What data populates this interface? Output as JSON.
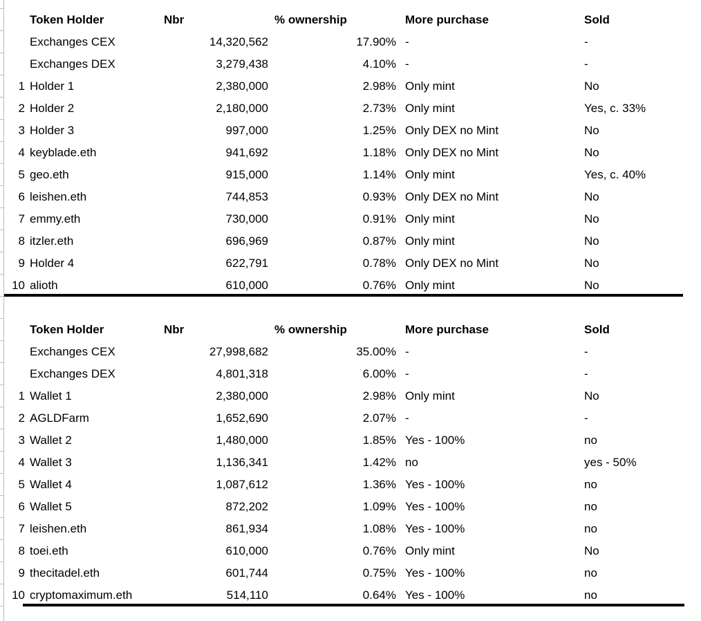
{
  "colors": {
    "background": "#ffffff",
    "text": "#000000",
    "gridline": "#bbbbbb",
    "divider": "#000000"
  },
  "tables": [
    {
      "headers": {
        "rank": "",
        "holder": "Token Holder",
        "nbr": "Nbr",
        "pct": "% ownership",
        "more": "More purchase",
        "sold": "Sold"
      },
      "rows": [
        {
          "rank": "",
          "holder": "Exchanges CEX",
          "nbr": "14,320,562",
          "pct": "17.90%",
          "more": "-",
          "sold": "-"
        },
        {
          "rank": "",
          "holder": "Exchanges DEX",
          "nbr": "3,279,438",
          "pct": "4.10%",
          "more": "-",
          "sold": "-"
        },
        {
          "rank": "1",
          "holder": "Holder 1",
          "nbr": "2,380,000",
          "pct": "2.98%",
          "more": "Only mint",
          "sold": "No"
        },
        {
          "rank": "2",
          "holder": "Holder 2",
          "nbr": "2,180,000",
          "pct": "2.73%",
          "more": "Only mint",
          "sold": "Yes, c. 33%"
        },
        {
          "rank": "3",
          "holder": "Holder 3",
          "nbr": "997,000",
          "pct": "1.25%",
          "more": "Only DEX no Mint",
          "sold": "No"
        },
        {
          "rank": "4",
          "holder": "keyblade.eth",
          "nbr": "941,692",
          "pct": "1.18%",
          "more": "Only DEX no Mint",
          "sold": "No"
        },
        {
          "rank": "5",
          "holder": "geo.eth",
          "nbr": "915,000",
          "pct": "1.14%",
          "more": "Only mint",
          "sold": "Yes, c. 40%"
        },
        {
          "rank": "6",
          "holder": "leishen.eth",
          "nbr": "744,853",
          "pct": "0.93%",
          "more": "Only DEX no Mint",
          "sold": "No"
        },
        {
          "rank": "7",
          "holder": "emmy.eth",
          "nbr": "730,000",
          "pct": "0.91%",
          "more": "Only mint",
          "sold": "No"
        },
        {
          "rank": "8",
          "holder": "itzler.eth",
          "nbr": "696,969",
          "pct": "0.87%",
          "more": "Only mint",
          "sold": "No"
        },
        {
          "rank": "9",
          "holder": "Holder 4",
          "nbr": "622,791",
          "pct": "0.78%",
          "more": "Only DEX no Mint",
          "sold": "No"
        },
        {
          "rank": "10",
          "holder": "alioth",
          "nbr": "610,000",
          "pct": "0.76%",
          "more": "Only mint",
          "sold": "No"
        }
      ]
    },
    {
      "headers": {
        "rank": "",
        "holder": "Token Holder",
        "nbr": "Nbr",
        "pct": "% ownership",
        "more": "More purchase",
        "sold": "Sold"
      },
      "rows": [
        {
          "rank": "",
          "holder": "Exchanges CEX",
          "nbr": "27,998,682",
          "pct": "35.00%",
          "more": "-",
          "sold": "-"
        },
        {
          "rank": "",
          "holder": "Exchanges DEX",
          "nbr": "4,801,318",
          "pct": "6.00%",
          "more": "-",
          "sold": "-"
        },
        {
          "rank": "1",
          "holder": "Wallet 1",
          "nbr": "2,380,000",
          "pct": "2.98%",
          "more": "Only mint",
          "sold": "No"
        },
        {
          "rank": "2",
          "holder": "AGLDFarm",
          "nbr": "1,652,690",
          "pct": "2.07%",
          "more": "-",
          "sold": "-"
        },
        {
          "rank": "3",
          "holder": "Wallet 2",
          "nbr": "1,480,000",
          "pct": "1.85%",
          "more": "Yes - 100%",
          "sold": "no"
        },
        {
          "rank": "4",
          "holder": "Wallet 3",
          "nbr": "1,136,341",
          "pct": "1.42%",
          "more": "no",
          "sold": "yes - 50%"
        },
        {
          "rank": "5",
          "holder": "Wallet 4",
          "nbr": "1,087,612",
          "pct": "1.36%",
          "more": "Yes - 100%",
          "sold": "no"
        },
        {
          "rank": "6",
          "holder": "Wallet 5",
          "nbr": "872,202",
          "pct": "1.09%",
          "more": "Yes - 100%",
          "sold": "no"
        },
        {
          "rank": "7",
          "holder": "leishen.eth",
          "nbr": "861,934",
          "pct": "1.08%",
          "more": "Yes - 100%",
          "sold": "no"
        },
        {
          "rank": "8",
          "holder": "toei.eth",
          "nbr": "610,000",
          "pct": "0.76%",
          "more": "Only mint",
          "sold": "No"
        },
        {
          "rank": "9",
          "holder": "thecitadel.eth",
          "nbr": "601,744",
          "pct": "0.75%",
          "more": "Yes - 100%",
          "sold": "no"
        },
        {
          "rank": "10",
          "holder": "cryptomaximum.eth",
          "nbr": "514,110",
          "pct": "0.64%",
          "more": "Yes - 100%",
          "sold": "no"
        }
      ]
    }
  ]
}
